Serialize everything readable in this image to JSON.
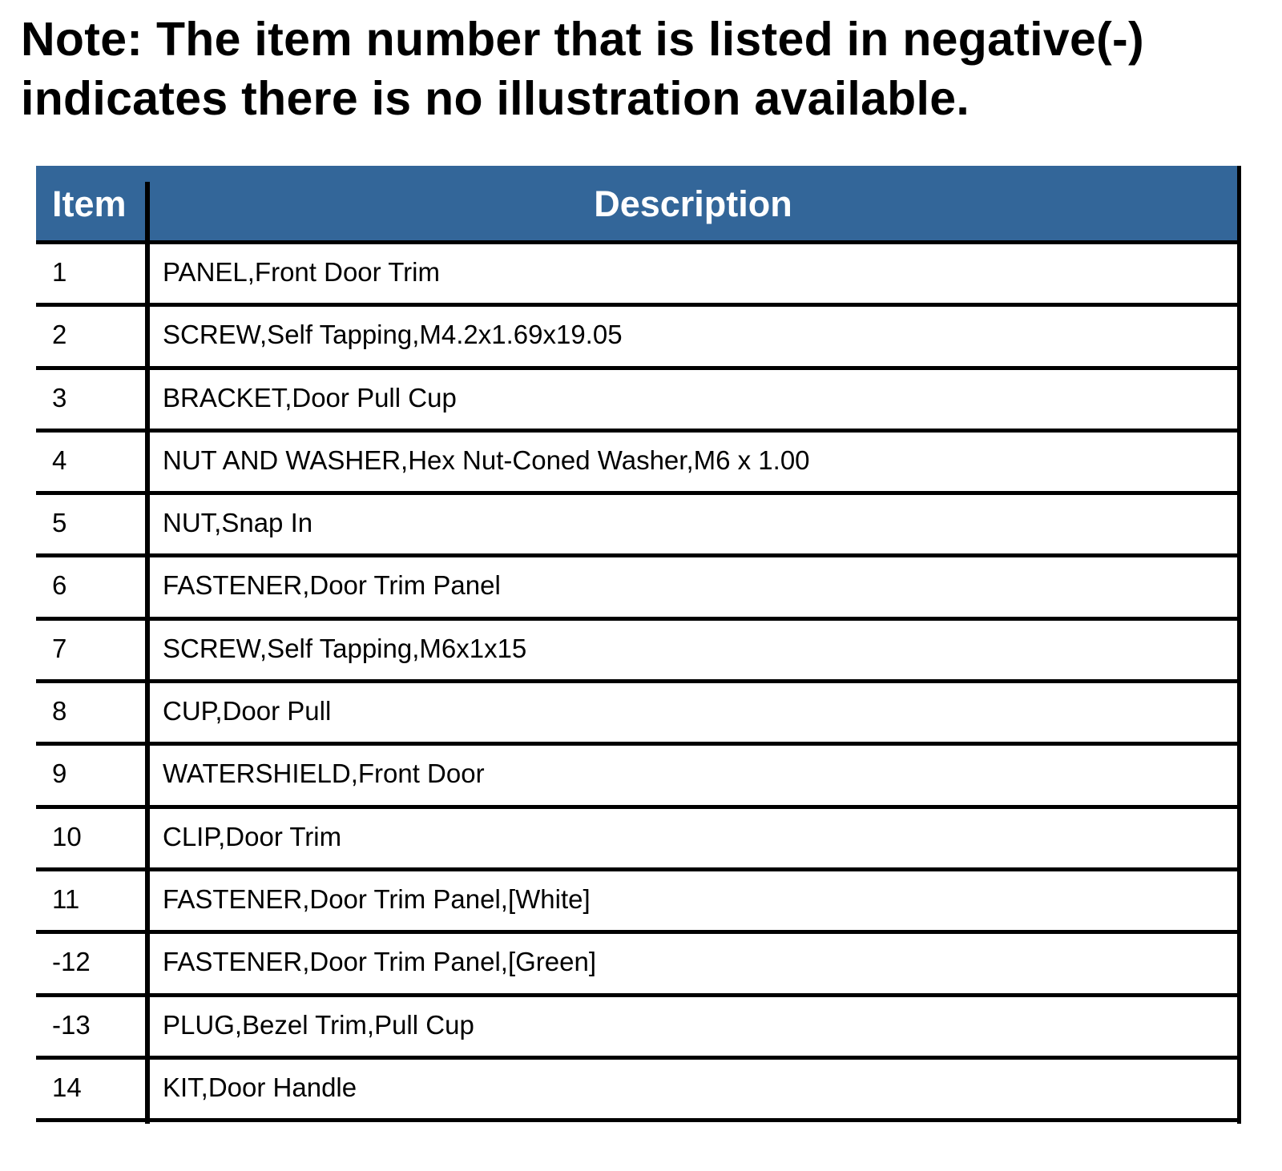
{
  "note": {
    "line1": "Note: The item number that is listed in negative(-)",
    "line2": "indicates there is no illustration available."
  },
  "table": {
    "header_color": "#336699",
    "columns": [
      "Item",
      "Description"
    ],
    "rows": [
      [
        "1",
        "PANEL,Front Door Trim"
      ],
      [
        "2",
        "SCREW,Self Tapping,M4.2x1.69x19.05"
      ],
      [
        "3",
        "BRACKET,Door Pull Cup"
      ],
      [
        "4",
        "NUT AND WASHER,Hex Nut-Coned Washer,M6 x 1.00"
      ],
      [
        "5",
        "NUT,Snap In"
      ],
      [
        "6",
        "FASTENER,Door Trim Panel"
      ],
      [
        "7",
        "SCREW,Self Tapping,M6x1x15"
      ],
      [
        "8",
        "CUP,Door Pull"
      ],
      [
        "9",
        "WATERSHIELD,Front Door"
      ],
      [
        "10",
        "CLIP,Door Trim"
      ],
      [
        "11",
        "FASTENER,Door Trim Panel,[White]"
      ],
      [
        "-12",
        "FASTENER,Door Trim Panel,[Green]"
      ],
      [
        "-13",
        "PLUG,Bezel Trim,Pull Cup"
      ],
      [
        "14",
        "KIT,Door Handle"
      ]
    ]
  }
}
